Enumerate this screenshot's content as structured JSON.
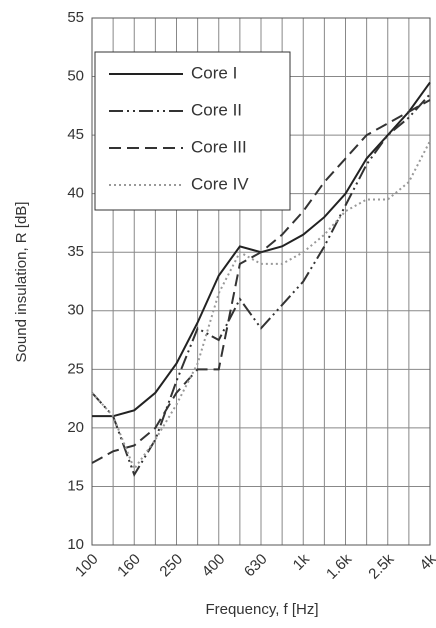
{
  "chart_data": {
    "type": "line",
    "xlabel": "Frequency, f [Hz]",
    "ylabel": "Sound insulation, R [dB]",
    "categories": [
      "100",
      null,
      "160",
      null,
      "250",
      null,
      "400",
      null,
      "630",
      null,
      "1k",
      null,
      "1.6k",
      null,
      "2.5k",
      null,
      "4k"
    ],
    "series": [
      {
        "name": "Core I",
        "color": "#222222",
        "dash": "solid",
        "values": [
          21,
          21,
          21.5,
          23,
          25.5,
          29,
          33,
          35.5,
          35,
          35.5,
          36.5,
          38,
          40,
          43,
          45,
          47,
          49.5
        ]
      },
      {
        "name": "Core II",
        "color": "#333333",
        "dash": "dashdot",
        "values": [
          23,
          21,
          16,
          19,
          24,
          28.5,
          27.5,
          31,
          28.5,
          30.5,
          32.5,
          35.5,
          39,
          42.5,
          45,
          46.5,
          48.5
        ]
      },
      {
        "name": "Core III",
        "color": "#333333",
        "dash": "dashed",
        "values": [
          17,
          18,
          18.5,
          20,
          23,
          25,
          25,
          34,
          35,
          36.5,
          38.5,
          41,
          43,
          45,
          46,
          47,
          48
        ]
      },
      {
        "name": "Core IV",
        "color": "#999999",
        "dash": "dotted",
        "values": [
          23,
          21,
          16.5,
          19,
          22,
          25.5,
          31.5,
          35,
          34,
          34,
          35,
          36.5,
          38.5,
          39.5,
          39.5,
          41,
          44.5
        ]
      }
    ],
    "ylim": [
      10,
      55
    ],
    "yticks": [
      10,
      15,
      20,
      25,
      30,
      35,
      40,
      45,
      50,
      55
    ],
    "grid": true,
    "legend": "upper left"
  }
}
